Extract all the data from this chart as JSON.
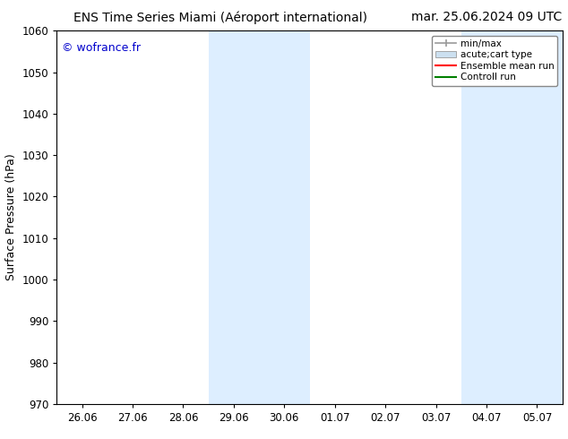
{
  "title_left": "ENS Time Series Miami (Aéroport international)",
  "title_right": "mar. 25.06.2024 09 UTC",
  "ylabel": "Surface Pressure (hPa)",
  "ylim": [
    970,
    1060
  ],
  "yticks": [
    970,
    980,
    990,
    1000,
    1010,
    1020,
    1030,
    1040,
    1050,
    1060
  ],
  "xtick_labels": [
    "26.06",
    "27.06",
    "28.06",
    "29.06",
    "30.06",
    "01.07",
    "02.07",
    "03.07",
    "04.07",
    "05.07"
  ],
  "x_numeric": [
    0,
    1,
    2,
    3,
    4,
    5,
    6,
    7,
    8,
    9
  ],
  "xlim": [
    -0.5,
    9.5
  ],
  "watermark": "© wofrance.fr",
  "watermark_color": "#0000cc",
  "bg_color": "#ffffff",
  "shaded_regions": [
    {
      "xstart": 2.5,
      "xend": 4.5,
      "color": "#ddeeff"
    },
    {
      "xstart": 7.5,
      "xend": 9.5,
      "color": "#ddeeff"
    }
  ],
  "legend_items": [
    {
      "label": "min/max",
      "color": "#999999",
      "style": "line_with_caps"
    },
    {
      "label": "acute;cart type",
      "color": "#cce0f0",
      "style": "filled_rect"
    },
    {
      "label": "Ensemble mean run",
      "color": "#ff0000",
      "style": "line"
    },
    {
      "label": "Controll run",
      "color": "#008000",
      "style": "line"
    }
  ],
  "title_fontsize": 10,
  "tick_fontsize": 8.5,
  "ylabel_fontsize": 9,
  "watermark_fontsize": 9,
  "legend_fontsize": 7.5
}
